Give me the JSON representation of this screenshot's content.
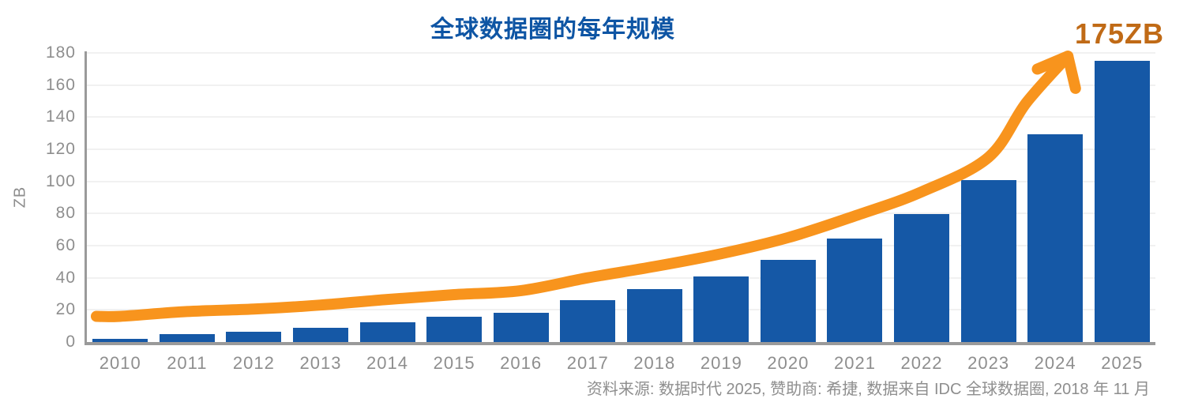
{
  "title": {
    "text": "全球数据圈的每年规模",
    "color": "#0E55A4"
  },
  "annotation": {
    "text": "175ZB",
    "color": "#C06A16"
  },
  "source_note": {
    "text": "资料来源: 数据时代 2025, 赞助商: 希捷, 数据来自 IDC 全球数据圈, 2018 年 11 月",
    "color": "#8E8E8E"
  },
  "chart_data": {
    "type": "bar",
    "title": "全球数据圈的每年规模",
    "categories": [
      "2010",
      "2011",
      "2012",
      "2013",
      "2014",
      "2015",
      "2016",
      "2017",
      "2018",
      "2019",
      "2020",
      "2021",
      "2022",
      "2023",
      "2024",
      "2025"
    ],
    "values": [
      2,
      5,
      6.5,
      9,
      12.5,
      15.5,
      18,
      26,
      33,
      41,
      51,
      64.5,
      79.5,
      101,
      129.5,
      175
    ],
    "xlabel": "",
    "ylabel": "ZB",
    "ylim": [
      0,
      180
    ],
    "yticks": [
      0,
      20,
      40,
      60,
      80,
      100,
      120,
      140,
      160,
      180
    ],
    "grid": true,
    "legend_position": "none",
    "bar_color": "#1558A6",
    "axis_color": "#9A9A9A",
    "grid_color": "#F1F1F1",
    "tick_color": "#8E8E8E",
    "trend_arrow": {
      "color": "#F8941D",
      "offset_zb": 14,
      "tip_zb": 178,
      "end_label": "175ZB"
    }
  }
}
